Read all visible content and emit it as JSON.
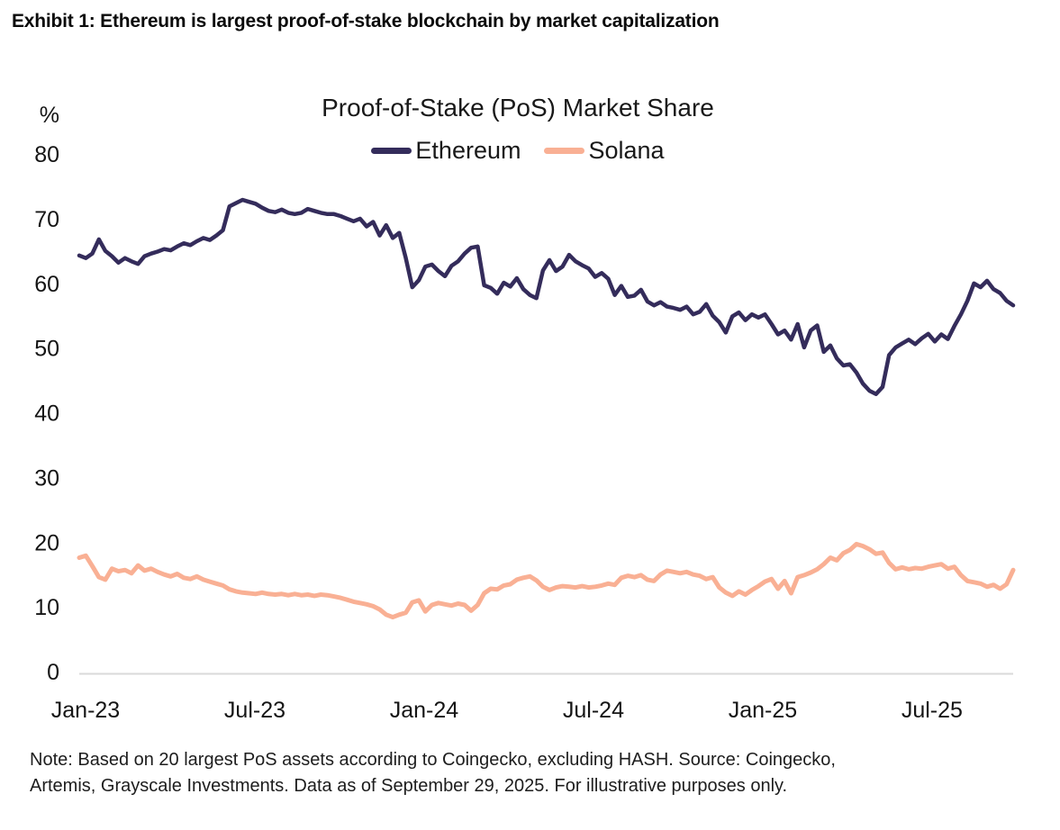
{
  "exhibit_title": "Exhibit 1: Ethereum is largest proof-of-stake blockchain by market capitalization",
  "note_line1": "Note: Based on 20 largest PoS assets according to Coingecko, excluding HASH. Source: Coingecko,",
  "note_line2": "Artemis, Grayscale Investments. Data as of September 29, 2025. For illustrative purposes only.",
  "chart_data": {
    "type": "line",
    "title": "Proof-of-Stake (PoS) Market Share",
    "y_unit": "%",
    "ylim": [
      0,
      80
    ],
    "yticks": [
      80,
      70,
      60,
      50,
      40,
      30,
      20,
      10,
      0
    ],
    "xticks": [
      {
        "label": "Jan-23",
        "month": 0
      },
      {
        "label": "Jul-23",
        "month": 6
      },
      {
        "label": "Jan-24",
        "month": 12
      },
      {
        "label": "Jul-24",
        "month": 18
      },
      {
        "label": "Jan-25",
        "month": 24
      },
      {
        "label": "Jul-25",
        "month": 30
      }
    ],
    "x_span_months": 32.9,
    "x_interval": "weekly",
    "x_range_note": "Jan-2023 through Sep-29-2025",
    "grid": false,
    "legend_position": "top",
    "axis_line_color": "#dadada",
    "series": [
      {
        "name": "Ethereum",
        "color": "#342C5B",
        "stroke_width": 4.5,
        "values": [
          64.3,
          63.9,
          64.6,
          66.8,
          65.0,
          64.2,
          63.2,
          63.9,
          63.4,
          63.0,
          64.2,
          64.6,
          64.9,
          65.3,
          65.1,
          65.7,
          66.2,
          65.9,
          66.5,
          67.0,
          66.7,
          67.4,
          68.2,
          71.9,
          72.4,
          72.9,
          72.6,
          72.3,
          71.7,
          71.2,
          71.0,
          71.4,
          70.9,
          70.7,
          70.9,
          71.5,
          71.2,
          70.9,
          70.7,
          70.7,
          70.4,
          70.0,
          69.6,
          70.0,
          68.8,
          69.5,
          67.4,
          69.0,
          67.0,
          67.8,
          63.9,
          59.4,
          60.5,
          62.6,
          62.9,
          61.9,
          61.1,
          62.7,
          63.4,
          64.6,
          65.5,
          65.7,
          59.7,
          59.3,
          58.4,
          60.1,
          59.5,
          60.8,
          59.1,
          58.2,
          57.7,
          62.0,
          63.6,
          61.9,
          62.6,
          64.4,
          63.4,
          62.8,
          62.3,
          61.0,
          61.6,
          60.7,
          58.2,
          59.6,
          57.9,
          58.1,
          59.0,
          57.2,
          56.6,
          57.1,
          56.4,
          56.2,
          55.9,
          56.4,
          55.2,
          55.6,
          56.8,
          55.0,
          54.0,
          52.4,
          54.9,
          55.5,
          54.3,
          55.2,
          54.7,
          55.2,
          53.7,
          52.1,
          52.7,
          51.3,
          53.7,
          50.1,
          52.7,
          53.5,
          49.4,
          50.4,
          48.4,
          47.3,
          47.5,
          46.2,
          44.5,
          43.4,
          42.9,
          44.0,
          48.9,
          50.1,
          50.7,
          51.3,
          50.6,
          51.5,
          52.2,
          51.0,
          52.1,
          51.4,
          53.4,
          55.2,
          57.3,
          60.0,
          59.4,
          60.4,
          59.1,
          58.5,
          57.3,
          56.6
        ]
      },
      {
        "name": "Solana",
        "color": "#F9B094",
        "stroke_width": 5,
        "values": [
          17.6,
          17.9,
          16.3,
          14.6,
          14.2,
          15.9,
          15.5,
          15.7,
          15.2,
          16.4,
          15.6,
          15.9,
          15.4,
          15.0,
          14.7,
          15.1,
          14.5,
          14.3,
          14.7,
          14.2,
          13.9,
          13.6,
          13.3,
          12.7,
          12.4,
          12.2,
          12.1,
          12.0,
          12.2,
          12.0,
          11.9,
          12.0,
          11.8,
          12.0,
          11.8,
          11.9,
          11.7,
          11.9,
          11.8,
          11.6,
          11.4,
          11.1,
          10.8,
          10.6,
          10.4,
          10.1,
          9.6,
          8.8,
          8.4,
          8.8,
          9.1,
          10.7,
          11.0,
          9.3,
          10.3,
          10.6,
          10.4,
          10.2,
          10.5,
          10.3,
          9.4,
          10.3,
          12.1,
          12.8,
          12.7,
          13.3,
          13.5,
          14.2,
          14.5,
          14.7,
          14.1,
          13.1,
          12.6,
          13.0,
          13.2,
          13.1,
          13.0,
          13.2,
          13.0,
          13.1,
          13.3,
          13.6,
          13.4,
          14.5,
          14.8,
          14.6,
          14.9,
          14.2,
          14.0,
          15.0,
          15.6,
          15.4,
          15.2,
          15.4,
          15.0,
          14.8,
          14.3,
          14.6,
          13.0,
          12.2,
          11.7,
          12.4,
          11.9,
          12.6,
          13.2,
          13.9,
          14.3,
          12.8,
          14.0,
          12.1,
          14.6,
          14.9,
          15.3,
          15.8,
          16.6,
          17.6,
          17.2,
          18.3,
          18.8,
          19.7,
          19.4,
          18.9,
          18.2,
          18.4,
          16.8,
          15.8,
          16.1,
          15.8,
          16.0,
          15.9,
          16.2,
          16.4,
          16.6,
          15.9,
          16.2,
          14.9,
          14.0,
          13.8,
          13.6,
          13.1,
          13.4,
          12.8,
          13.5,
          15.7
        ]
      }
    ]
  }
}
